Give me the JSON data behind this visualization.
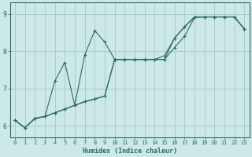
{
  "xlabel": "Humidex (Indice chaleur)",
  "background_color": "#cce8e8",
  "grid_color": "#aacccc",
  "line_color": "#2d6b5e",
  "xlim": [
    -0.5,
    23.5
  ],
  "ylim": [
    5.7,
    9.3
  ],
  "yticks": [
    6,
    7,
    8,
    9
  ],
  "xticks": [
    0,
    1,
    2,
    3,
    4,
    5,
    6,
    7,
    8,
    9,
    10,
    11,
    12,
    13,
    14,
    15,
    16,
    17,
    18,
    19,
    20,
    21,
    22,
    23
  ],
  "series1_x": [
    0,
    1,
    2,
    3,
    4,
    5,
    6,
    7,
    8,
    9,
    10,
    11,
    12,
    13,
    14,
    15,
    16,
    17,
    18,
    19,
    20,
    21,
    22,
    23
  ],
  "series1_y": [
    6.15,
    5.95,
    6.2,
    6.25,
    6.35,
    6.45,
    6.55,
    6.65,
    6.72,
    6.8,
    7.78,
    7.78,
    7.78,
    7.78,
    7.78,
    7.78,
    8.1,
    8.4,
    8.9,
    8.92,
    8.92,
    8.92,
    8.92,
    8.6
  ],
  "series2_x": [
    0,
    1,
    2,
    3,
    4,
    5,
    6,
    7,
    8,
    9,
    10,
    11,
    12,
    13,
    14,
    15,
    16,
    17,
    18,
    19,
    20,
    21,
    22,
    23
  ],
  "series2_y": [
    6.15,
    5.95,
    6.2,
    6.25,
    7.2,
    7.7,
    6.55,
    7.9,
    8.55,
    8.25,
    7.78,
    7.78,
    7.78,
    7.78,
    7.78,
    7.88,
    8.35,
    8.65,
    8.92,
    8.92,
    8.92,
    8.92,
    8.92,
    8.6
  ],
  "series3_x": [
    0,
    1,
    2,
    3,
    4,
    5,
    6,
    7,
    8,
    9,
    10,
    11,
    12,
    13,
    14,
    15,
    16,
    17,
    18,
    19,
    20,
    21,
    22,
    23
  ],
  "series3_y": [
    6.15,
    5.95,
    6.2,
    6.25,
    6.35,
    6.45,
    6.55,
    6.65,
    6.72,
    6.8,
    7.78,
    7.78,
    7.78,
    7.78,
    7.78,
    7.78,
    8.35,
    8.65,
    8.92,
    8.92,
    8.92,
    8.92,
    8.92,
    8.6
  ]
}
